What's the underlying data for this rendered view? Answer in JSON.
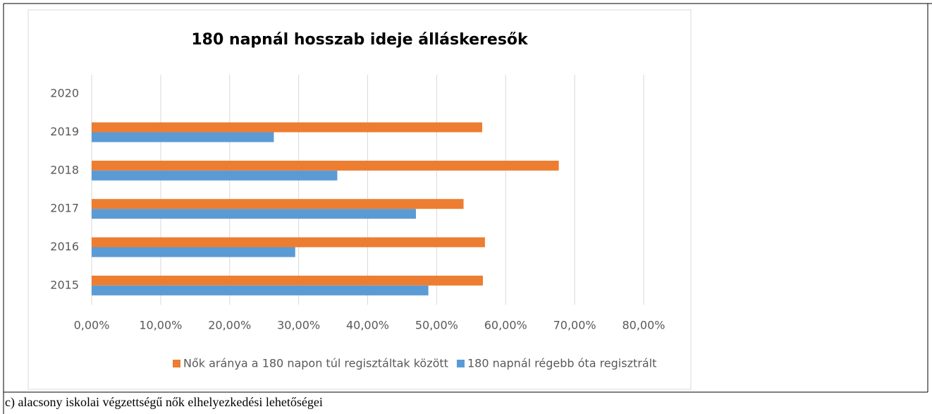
{
  "chart_data": {
    "type": "barh",
    "title": "180 napnál hosszab ideje álláskeresők",
    "categories": [
      "2015",
      "2016",
      "2017",
      "2018",
      "2019",
      "2020"
    ],
    "series": [
      {
        "name": "Nők aránya a 180 napon túl regisztáltak között",
        "color": "#ed7d31",
        "values": [
          56.7,
          57.0,
          53.9,
          67.7,
          56.6,
          null
        ]
      },
      {
        "name": "180 napnál régebb óta regisztrált",
        "color": "#5b9bd5",
        "values": [
          48.8,
          29.5,
          47.0,
          35.6,
          26.4,
          null
        ]
      }
    ],
    "xlim": [
      0,
      80
    ],
    "xticks": [
      {
        "value": 0,
        "label": "0,00%"
      },
      {
        "value": 10,
        "label": "10,00%"
      },
      {
        "value": 20,
        "label": "20,00%"
      },
      {
        "value": 30,
        "label": "30,00%"
      },
      {
        "value": 40,
        "label": "40,00%"
      },
      {
        "value": 50,
        "label": "50,00%"
      },
      {
        "value": 60,
        "label": "60,00%"
      },
      {
        "value": 70,
        "label": "70,00%"
      },
      {
        "value": 80,
        "label": "80,00%"
      }
    ],
    "grid": true,
    "legend": "bottom"
  },
  "caption": "c) alacsony iskolai végzettségű nők elhelyezkedési lehetőségei"
}
